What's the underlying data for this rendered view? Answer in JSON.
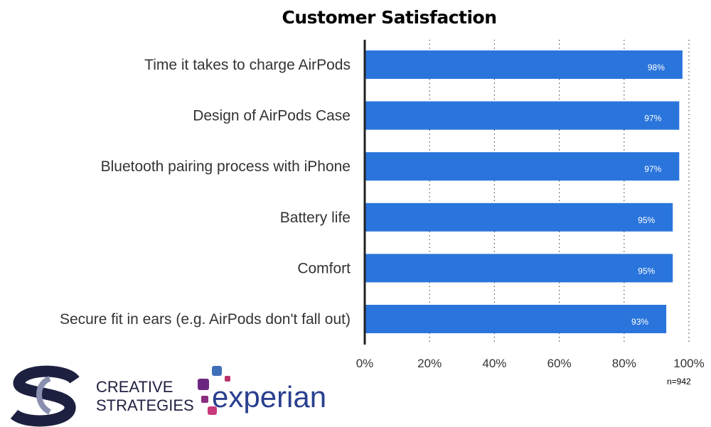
{
  "chart_data": {
    "type": "bar",
    "orientation": "horizontal",
    "title": "Customer Satisfaction",
    "categories": [
      "Time it takes to charge AirPods",
      "Design of AirPods Case",
      "Bluetooth pairing process with iPhone",
      "Battery life",
      "Comfort",
      "Secure fit in ears (e.g. AirPods don't fall out)"
    ],
    "values": [
      98,
      97,
      97,
      95,
      95,
      93
    ],
    "data_labels": [
      "98%",
      "97%",
      "97%",
      "95%",
      "95%",
      "93%"
    ],
    "xlim": [
      0,
      100
    ],
    "x_ticks": [
      "0%",
      "20%",
      "40%",
      "60%",
      "80%",
      "100%"
    ],
    "grid": "vertical dotted",
    "bar_color": "#2a75dc",
    "note": "n=942"
  },
  "logos": {
    "creative_strategies": "Creative Strategies",
    "experian": "experian"
  }
}
